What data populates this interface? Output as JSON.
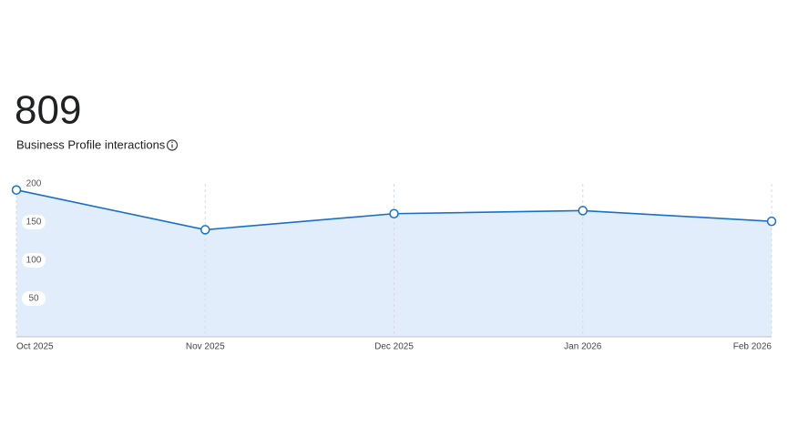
{
  "header": {
    "total": "809",
    "label": "Business Profile interactions"
  },
  "chart_data": {
    "type": "area",
    "categories": [
      "Oct 2025",
      "Nov 2025",
      "Dec 2025",
      "Jan 2026",
      "Feb 2026"
    ],
    "values": [
      192,
      140,
      161,
      165,
      151
    ],
    "color": "#1a6fc9",
    "fill": "#e2edfc",
    "ylim": [
      0,
      200
    ],
    "yticks": [
      50,
      100,
      150,
      200
    ],
    "grid": true
  }
}
